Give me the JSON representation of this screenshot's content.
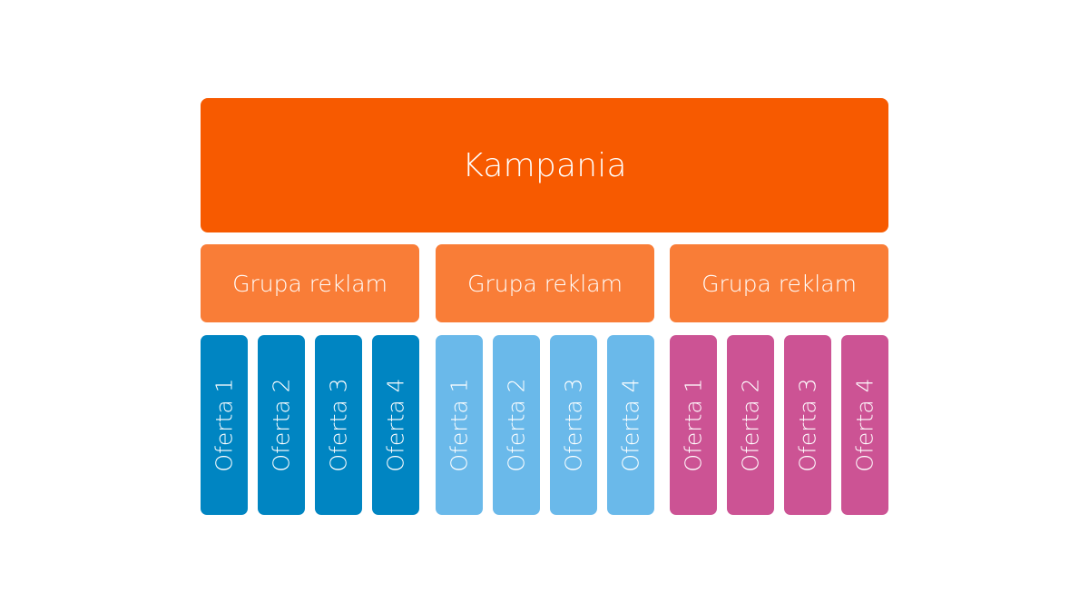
{
  "campaign": {
    "label": "Kampania",
    "color": "#f75a00"
  },
  "groups": [
    {
      "label": "Grupa reklam",
      "color": "#f97d37",
      "offer_color": "#0085c2",
      "offers": [
        "Oferta 1",
        "Oferta 2",
        "Oferta 3",
        "Oferta 4"
      ]
    },
    {
      "label": "Grupa reklam",
      "color": "#f97d37",
      "offer_color": "#6ab9ea",
      "offers": [
        "Oferta 1",
        "Oferta 2",
        "Oferta 3",
        "Oferta 4"
      ]
    },
    {
      "label": "Grupa reklam",
      "color": "#f97d37",
      "offer_color": "#cc5394",
      "offers": [
        "Oferta 1",
        "Oferta 2",
        "Oferta 3",
        "Oferta 4"
      ]
    }
  ]
}
